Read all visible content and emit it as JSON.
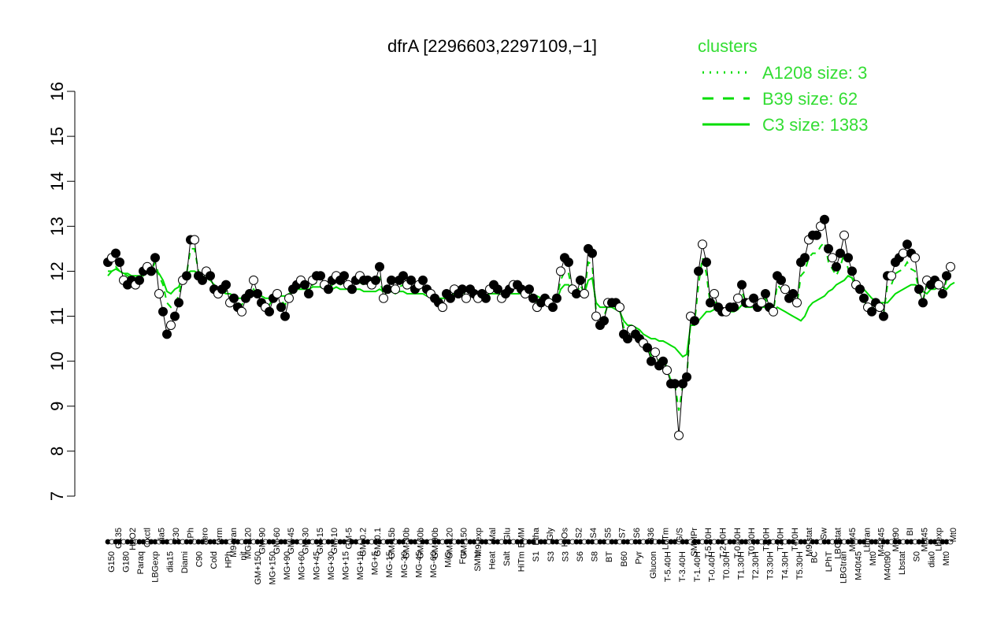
{
  "chart_data": {
    "type": "line",
    "title": "dfrA [2296603,2297109,−1]",
    "xlabel": "",
    "ylabel": "",
    "ylim": [
      7,
      16
    ],
    "yticks": [
      7,
      8,
      9,
      10,
      11,
      12,
      13,
      14,
      15,
      16
    ],
    "grid": false,
    "legend_placement": "top-right",
    "colors": {
      "lines": "#00dd00",
      "legend_text": "#33dd33",
      "marker_filled": "#000000",
      "marker_open": "#ffffff",
      "axis": "#000000"
    },
    "legend": {
      "title": "clusters",
      "entries": [
        {
          "label": "A1208 size: 3",
          "style": "dotted"
        },
        {
          "label": "B39 size: 62",
          "style": "dashed"
        },
        {
          "label": "C3 size: 1383",
          "style": "solid"
        }
      ]
    },
    "tick_labels_lower": [
      "G150",
      "G180",
      "Paraq",
      "LBGexp",
      "dia15",
      "Diami",
      "C90",
      "Cold",
      "HPh",
      "nit",
      "GM+150",
      "MG+150",
      "MG+90",
      "MG+60",
      "MG+45",
      "MG+30",
      "MG+15",
      "MG+10",
      "MG+5",
      "MG-15",
      "MG-30",
      "MG-45",
      "MG-60",
      "M/G",
      "Fru",
      "SMM",
      "Heat",
      "Salt",
      "HiTm",
      "S1",
      "S3",
      "S3",
      "S6",
      "S8",
      "BT",
      "B60",
      "Pyr",
      "Glucon",
      "T-5.40H",
      "T-3.40H",
      "T-1.40H",
      "T-0.40H",
      "T0.30H",
      "T1.30H",
      "T2.30H",
      "T3.30H",
      "T4.30H",
      "T5.30H",
      "BC",
      "LPhT",
      "LBGtran",
      "M40t45",
      "Mt0",
      "M40t90",
      "Lbstat",
      "S0",
      "dia0",
      "Mt0"
    ],
    "tick_labels_upper": [
      "G135",
      "H2O2",
      "Oxctl",
      "dia5",
      "C30",
      "LPh",
      "aero",
      "ferm",
      "M9-tran",
      "MG-120",
      "GM-90",
      "GM-60",
      "GM-45",
      "GM-30",
      "GM-15",
      "GM-10",
      "GM-5",
      "GM-0.2",
      "GM-0.1",
      "GM-15b",
      "GM-30b",
      "GM-60b",
      "GM-90b",
      "GM-120",
      "GM-150",
      "M9-exp",
      "Mal",
      "Glu",
      "BMM",
      "Etha",
      "Gly",
      "HiOs",
      "S2",
      "S4",
      "S5",
      "S7",
      "S6",
      "B36",
      "LoTm",
      "G/S",
      "SMMPr",
      "T-5.40H",
      "T-2.40H",
      "T-0.40H",
      "T0.30H",
      "T2.0H",
      "T3.0H",
      "T4.0H",
      "M9-stat",
      "Sw",
      "LBGstat",
      "M0t45",
      "Lbtran",
      "M40t45",
      "M0t90",
      "BI",
      "M0t45",
      "Lbexp",
      "Mt0"
    ],
    "series": [
      {
        "name": "points",
        "values": [
          12.2,
          12.3,
          12.4,
          12.2,
          11.8,
          11.7,
          11.8,
          11.7,
          11.8,
          12.0,
          12.1,
          12.0,
          12.3,
          11.5,
          11.1,
          10.6,
          10.8,
          11.0,
          11.3,
          11.8,
          11.9,
          12.7,
          12.7,
          11.9,
          11.8,
          12.0,
          11.9,
          11.6,
          11.5,
          11.6,
          11.7,
          11.3,
          11.4,
          11.2,
          11.1,
          11.4,
          11.5,
          11.8,
          11.5,
          11.3,
          11.2,
          11.1,
          11.4,
          11.5,
          11.2,
          11.0,
          11.4,
          11.6,
          11.7,
          11.8,
          11.7,
          11.5,
          11.8,
          11.9,
          11.9,
          11.7,
          11.6,
          11.8,
          11.9,
          11.8,
          11.9,
          11.7,
          11.6,
          11.8,
          11.9,
          11.8,
          11.8,
          11.7,
          11.8,
          12.1,
          11.4,
          11.6,
          11.8,
          11.6,
          11.8,
          11.9,
          11.7,
          11.8,
          11.6,
          11.7,
          11.8,
          11.6,
          11.5,
          11.4,
          11.3,
          11.2,
          11.5,
          11.4,
          11.6,
          11.5,
          11.6,
          11.4,
          11.6,
          11.5,
          11.4,
          11.5,
          11.4,
          11.6,
          11.7,
          11.6,
          11.4,
          11.5,
          11.6,
          11.7,
          11.7,
          11.6,
          11.5,
          11.6,
          11.4,
          11.2,
          11.3,
          11.4,
          11.3,
          11.2,
          11.4,
          12.0,
          12.3,
          12.2,
          11.6,
          11.5,
          11.8,
          11.5,
          12.5,
          12.4,
          11.0,
          10.8,
          10.9,
          11.3,
          11.3,
          11.3,
          11.2,
          10.6,
          10.5,
          10.7,
          10.6,
          10.5,
          10.4,
          10.3,
          10.0,
          10.2,
          9.9,
          10.0,
          9.8,
          9.5,
          9.5,
          8.35,
          9.5,
          9.65,
          11.0,
          10.9,
          12.0,
          12.6,
          12.2,
          11.3,
          11.5,
          11.2,
          11.1,
          11.1,
          11.2,
          11.2,
          11.4,
          11.7,
          11.3,
          11.3,
          11.4,
          11.2,
          11.3,
          11.5,
          11.2,
          11.1,
          11.9,
          11.8,
          11.6,
          11.4,
          11.5,
          11.3,
          12.2,
          12.3,
          12.7,
          12.8,
          12.8,
          13.0,
          13.15,
          12.5,
          12.3,
          12.1,
          12.4,
          12.8,
          12.3,
          12.0,
          11.7,
          11.6,
          11.4,
          11.2,
          11.1,
          11.3,
          11.2,
          11.0,
          11.9,
          11.9,
          12.2,
          12.3,
          12.4,
          12.6,
          12.4,
          12.3,
          11.6,
          11.3,
          11.8,
          11.7,
          11.8,
          11.7,
          11.5,
          11.9,
          12.1
        ]
      },
      {
        "name": "C3",
        "values": [
          12.0,
          12.0,
          12.05,
          12.0,
          11.95,
          11.95,
          11.9,
          11.9,
          11.9,
          11.9,
          12.0,
          12.0,
          12.0,
          11.95,
          11.8,
          11.55,
          11.5,
          11.6,
          11.65,
          11.9,
          11.95,
          12.0,
          12.0,
          11.95,
          11.9,
          11.85,
          11.8,
          11.7,
          11.6,
          11.55,
          11.5,
          11.5,
          11.45,
          11.4,
          11.4,
          11.45,
          11.5,
          11.55,
          11.5,
          11.45,
          11.4,
          11.4,
          11.45,
          11.5,
          11.45,
          11.45,
          11.5,
          11.55,
          11.6,
          11.6,
          11.6,
          11.6,
          11.65,
          11.65,
          11.65,
          11.6,
          11.6,
          11.6,
          11.65,
          11.6,
          11.6,
          11.6,
          11.55,
          11.6,
          11.6,
          11.55,
          11.55,
          11.55,
          11.55,
          11.6,
          11.55,
          11.55,
          11.55,
          11.5,
          11.55,
          11.55,
          11.5,
          11.5,
          11.5,
          11.5,
          11.5,
          11.45,
          11.45,
          11.45,
          11.4,
          11.4,
          11.4,
          11.45,
          11.5,
          11.45,
          11.45,
          11.45,
          11.45,
          11.45,
          11.45,
          11.45,
          11.45,
          11.5,
          11.5,
          11.5,
          11.45,
          11.45,
          11.5,
          11.5,
          11.5,
          11.5,
          11.45,
          11.45,
          11.45,
          11.45,
          11.4,
          11.4,
          11.4,
          11.35,
          11.35,
          11.6,
          11.7,
          11.7,
          11.5,
          11.45,
          11.5,
          11.5,
          11.8,
          11.85,
          11.3,
          11.2,
          11.2,
          11.2,
          11.2,
          11.15,
          11.1,
          10.9,
          10.8,
          10.8,
          10.75,
          10.7,
          10.6,
          10.55,
          10.5,
          10.5,
          10.45,
          10.45,
          10.4,
          10.35,
          10.3,
          10.2,
          10.1,
          10.15,
          10.8,
          10.8,
          10.9,
          11.0,
          11.1,
          11.1,
          11.15,
          11.15,
          11.1,
          11.1,
          11.1,
          11.1,
          11.15,
          11.25,
          11.2,
          11.2,
          11.2,
          11.15,
          11.2,
          11.2,
          11.15,
          11.1,
          11.2,
          11.15,
          11.1,
          11.05,
          11.0,
          10.95,
          10.9,
          11.0,
          11.2,
          11.3,
          11.35,
          11.4,
          11.45,
          11.55,
          11.6,
          11.7,
          11.75,
          11.8,
          11.9,
          11.85,
          11.75,
          11.7,
          11.6,
          11.5,
          11.4,
          11.35,
          11.3,
          11.3,
          11.3,
          11.4,
          11.5,
          11.55,
          11.6,
          11.65,
          11.7,
          11.7,
          11.65,
          11.55,
          11.5,
          11.6,
          11.6,
          11.65,
          11.65,
          11.6,
          11.7,
          11.75
        ]
      },
      {
        "name": "B39",
        "values": [
          11.9,
          12.0,
          12.1,
          12.0,
          11.95,
          11.9,
          11.85,
          11.85,
          11.85,
          11.9,
          12.0,
          12.0,
          12.2,
          11.9,
          11.7,
          11.3,
          11.2,
          11.3,
          11.45,
          11.9,
          11.95,
          12.5,
          12.5,
          12.0,
          11.85,
          11.85,
          11.8,
          11.7,
          11.55,
          11.5,
          11.55,
          11.4,
          11.4,
          11.3,
          11.25,
          11.4,
          11.45,
          11.6,
          11.45,
          11.35,
          11.3,
          11.25,
          11.4,
          11.5,
          11.35,
          11.25,
          11.45,
          11.55,
          11.65,
          11.7,
          11.65,
          11.55,
          11.7,
          11.75,
          11.75,
          11.65,
          11.6,
          11.7,
          11.75,
          11.7,
          11.75,
          11.65,
          11.6,
          11.7,
          11.75,
          11.7,
          11.7,
          11.65,
          11.7,
          11.85,
          11.45,
          11.55,
          11.65,
          11.55,
          11.65,
          11.7,
          11.6,
          11.65,
          11.55,
          11.6,
          11.65,
          11.55,
          11.5,
          11.45,
          11.4,
          11.3,
          11.45,
          11.4,
          11.55,
          11.5,
          11.55,
          11.45,
          11.55,
          11.5,
          11.45,
          11.5,
          11.45,
          11.55,
          11.6,
          11.55,
          11.45,
          11.5,
          11.55,
          11.6,
          11.6,
          11.55,
          11.5,
          11.55,
          11.45,
          11.3,
          11.35,
          11.4,
          11.35,
          11.3,
          11.4,
          11.8,
          12.0,
          11.95,
          11.55,
          11.5,
          11.7,
          11.5,
          12.2,
          12.15,
          11.1,
          10.95,
          11.0,
          11.25,
          11.25,
          11.2,
          11.15,
          10.75,
          10.65,
          10.75,
          10.65,
          10.55,
          10.45,
          10.35,
          10.1,
          10.25,
          10.0,
          10.05,
          9.85,
          9.55,
          9.5,
          8.9,
          9.45,
          9.6,
          10.9,
          10.85,
          11.7,
          12.3,
          11.95,
          11.25,
          11.4,
          11.15,
          11.1,
          11.1,
          11.15,
          11.15,
          11.35,
          11.55,
          11.3,
          11.3,
          11.35,
          11.2,
          11.25,
          11.4,
          11.2,
          11.1,
          11.7,
          11.6,
          11.5,
          11.35,
          11.4,
          11.25,
          11.9,
          12.0,
          12.3,
          12.4,
          12.4,
          12.55,
          12.65,
          12.2,
          12.05,
          11.9,
          12.1,
          12.4,
          12.05,
          11.85,
          11.6,
          11.5,
          11.35,
          11.2,
          11.15,
          11.3,
          11.2,
          11.05,
          11.7,
          11.7,
          11.95,
          12.0,
          12.05,
          12.2,
          12.05,
          12.0,
          11.55,
          11.35,
          11.7,
          11.65,
          11.7,
          11.65,
          11.5,
          11.8,
          11.95
        ]
      }
    ]
  }
}
